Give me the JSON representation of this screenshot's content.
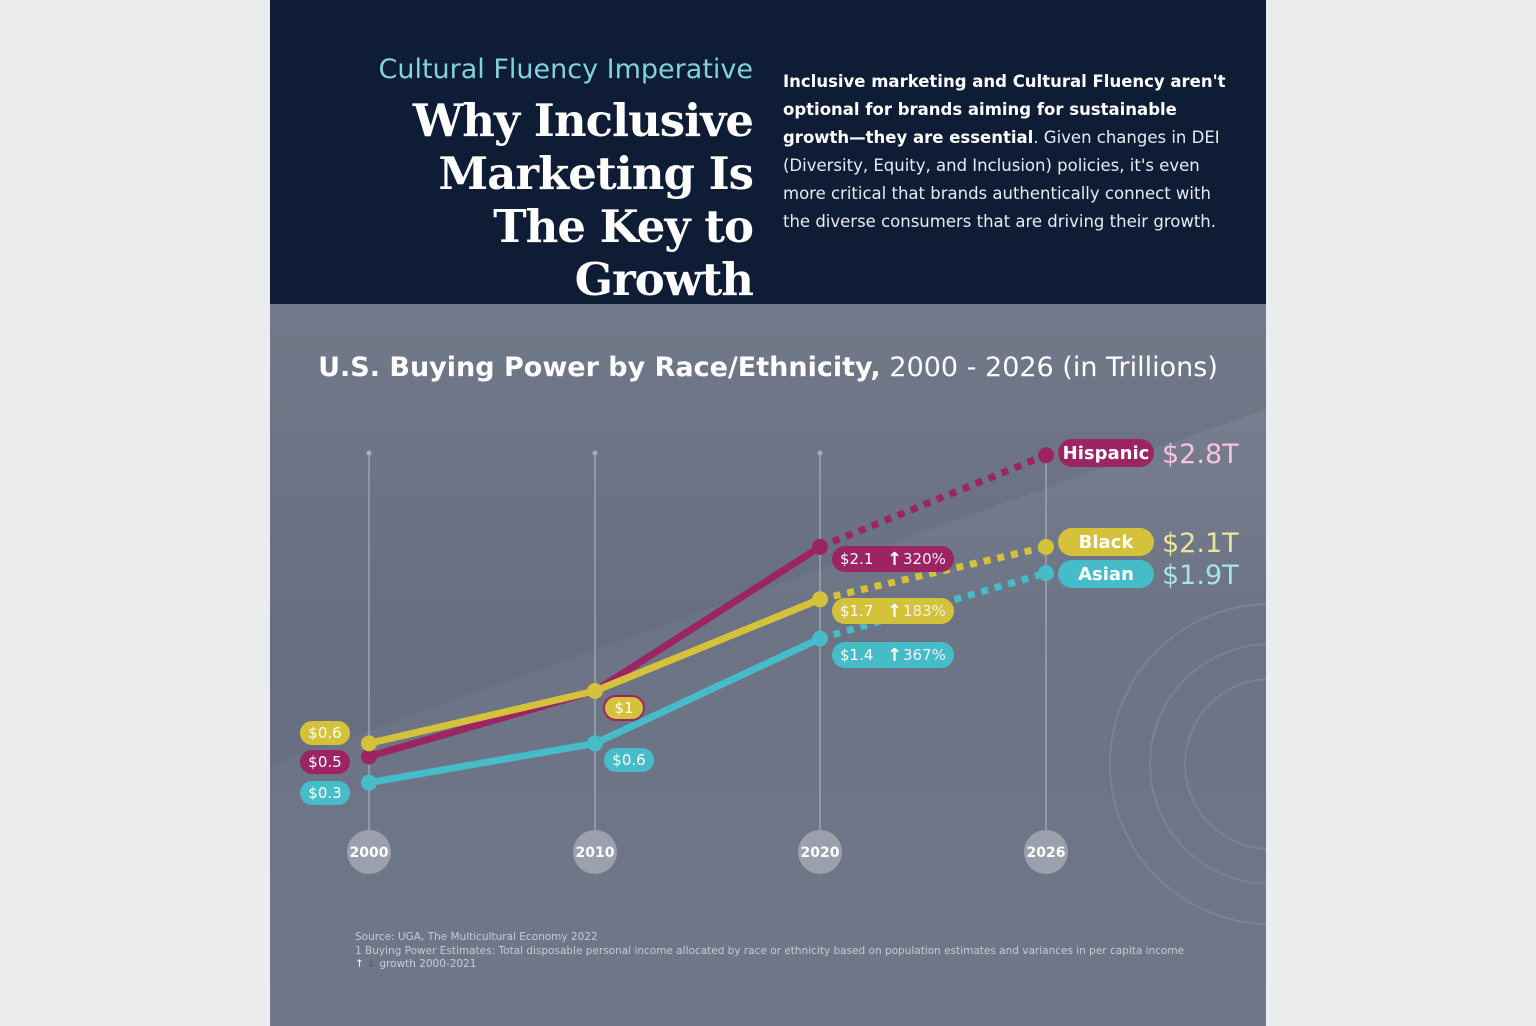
{
  "header": {
    "kicker": "Cultural Fluency Imperative",
    "title": "Why Inclusive Marketing Is The Key to Growth",
    "intro_bold": "Inclusive marketing and Cultural Fluency aren't optional for brands aiming for sustainable growth—they are essential",
    "intro_rest": ". Given changes in DEI (Diversity, Equity, and Inclusion) policies, it's even more critical that brands authentically connect with the diverse consumers that are driving their growth."
  },
  "chart_data": {
    "type": "line",
    "title_bold": "U.S. Buying Power by Race/Ethnicity,",
    "title_rest": "2000 - 2026 (in Trillions)",
    "categories": [
      "2000",
      "2010",
      "2020",
      "2026"
    ],
    "projected_from": "2020",
    "series": [
      {
        "name": "Hispanic",
        "color": "#9c2462",
        "value_color": "#f7c3dc",
        "values": [
          0.5,
          1,
          2.1,
          2.8
        ],
        "labels": [
          "$0.5",
          "$1",
          "$2.1",
          "$2.8T"
        ],
        "growth": "320%"
      },
      {
        "name": "Black",
        "color": "#d4c23a",
        "value_color": "#eee39a",
        "values": [
          0.6,
          1,
          1.7,
          2.1
        ],
        "labels": [
          "$0.6",
          "$1",
          "$1.7",
          "$2.1T"
        ],
        "growth": "183%"
      },
      {
        "name": "Asian",
        "color": "#45bcc8",
        "value_color": "#a7e4ea",
        "values": [
          0.3,
          0.6,
          1.4,
          1.9
        ],
        "labels": [
          "$0.3",
          "$0.6",
          "$1.4",
          "$1.9T"
        ],
        "growth": "367%"
      }
    ],
    "growth_icon": "arrow-up-icon"
  },
  "footnotes": {
    "source": "Source: UGA, The Multicultural Economy 2022",
    "note1": "1 Buying Power Estimates: Total disposable personal income allocated by race or ethnicity based on population estimates and variances in per capita income",
    "legend_up": "↑",
    "legend_down": "↓",
    "legend_text": "growth 2000-2021"
  }
}
